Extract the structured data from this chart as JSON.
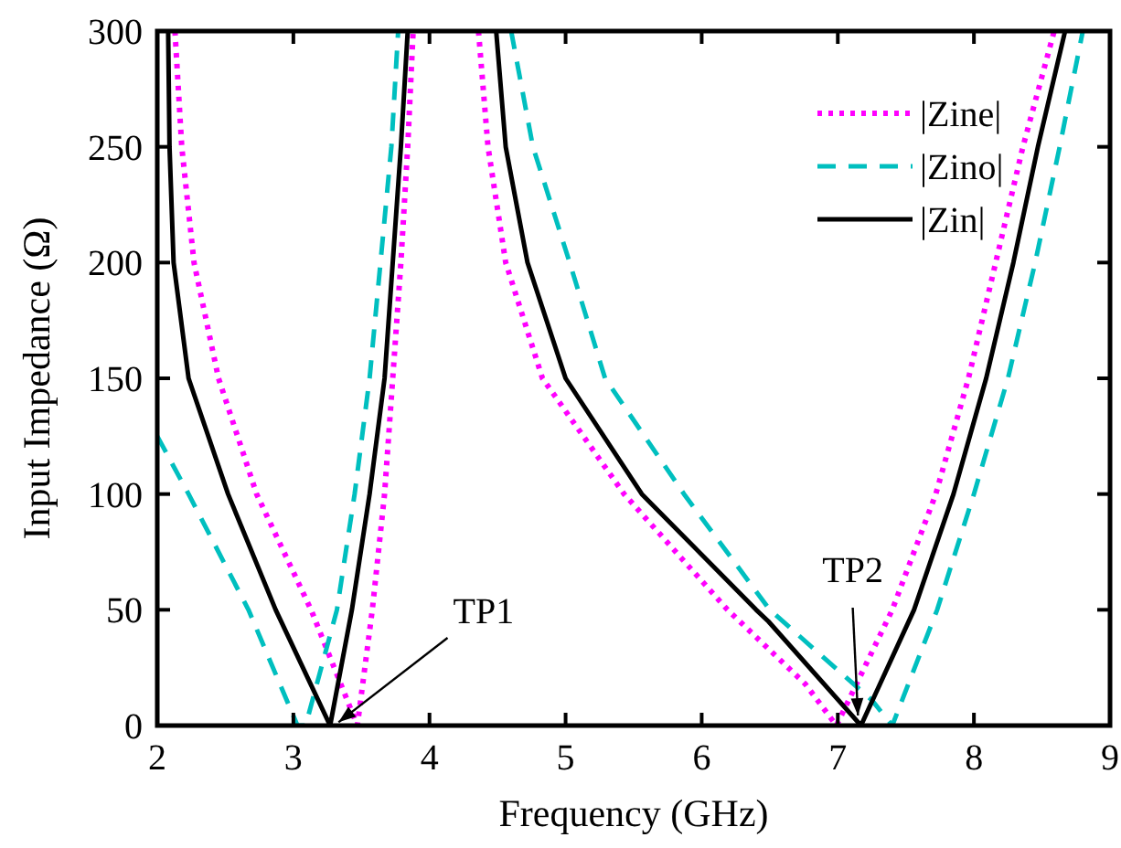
{
  "chart_data": {
    "type": "line",
    "xlabel": "Frequency (GHz)",
    "ylabel": "Input Impedance (Ω)",
    "xlim": [
      2,
      9
    ],
    "ylim": [
      0,
      300
    ],
    "xticks": [
      2,
      3,
      4,
      5,
      6,
      7,
      8,
      9
    ],
    "yticks": [
      0,
      50,
      100,
      150,
      200,
      250,
      300
    ],
    "legend": "top right",
    "grid": false,
    "series": [
      {
        "name": "|Zine|",
        "color": "#ff00ff",
        "line_style": "dotted",
        "x": [
          2.13,
          2.18,
          2.27,
          2.45,
          2.73,
          3.13,
          3.47,
          3.58,
          3.67,
          3.73,
          3.79,
          3.84,
          3.88,
          null,
          4.36,
          4.43,
          4.56,
          4.83,
          5.43,
          6.19,
          6.76,
          6.99,
          7.4,
          7.72,
          7.96,
          8.16,
          8.36,
          8.59
        ],
        "values": [
          300,
          250,
          200,
          150,
          100,
          50,
          0,
          50,
          100,
          150,
          200,
          250,
          300,
          null,
          300,
          250,
          200,
          150,
          100,
          50,
          18,
          0,
          50,
          100,
          150,
          200,
          250,
          300
        ]
      },
      {
        "name": "|Zino|",
        "color": "#00bfbf",
        "line_style": "dashed",
        "x": [
          2,
          2.23,
          2.67,
          3.03,
          3.09,
          3.32,
          3.45,
          3.56,
          3.64,
          3.72,
          3.77,
          null,
          4.6,
          4.76,
          5.03,
          5.29,
          5.87,
          6.5,
          7.25,
          7.4,
          7.73,
          8.0,
          8.25,
          8.45,
          8.63,
          8.8
        ],
        "values": [
          125,
          100,
          50,
          0,
          0,
          50,
          100,
          150,
          200,
          250,
          300,
          null,
          300,
          250,
          200,
          150,
          100,
          50,
          11,
          0,
          50,
          100,
          150,
          200,
          250,
          300
        ]
      },
      {
        "name": "|Zin|",
        "color": "#000000",
        "line_style": "solid",
        "x": [
          2.08,
          2.09,
          2.12,
          2.23,
          2.52,
          2.87,
          3.27,
          3.43,
          3.56,
          3.67,
          3.73,
          3.79,
          3.84,
          null,
          4.49,
          4.56,
          4.72,
          5.0,
          5.56,
          6.4,
          6.49,
          7.17,
          7.56,
          7.85,
          8.09,
          8.29,
          8.47,
          8.67
        ],
        "values": [
          300,
          250,
          200,
          150,
          100,
          50,
          0,
          50,
          100,
          150,
          200,
          250,
          300,
          null,
          300,
          250,
          200,
          150,
          100,
          50,
          45,
          0,
          50,
          100,
          150,
          200,
          250,
          300
        ]
      }
    ],
    "annotations": [
      {
        "text": "TP1",
        "x": 3.3,
        "y": 0
      },
      {
        "text": "TP2",
        "x": 7.15,
        "y": 2
      }
    ]
  }
}
